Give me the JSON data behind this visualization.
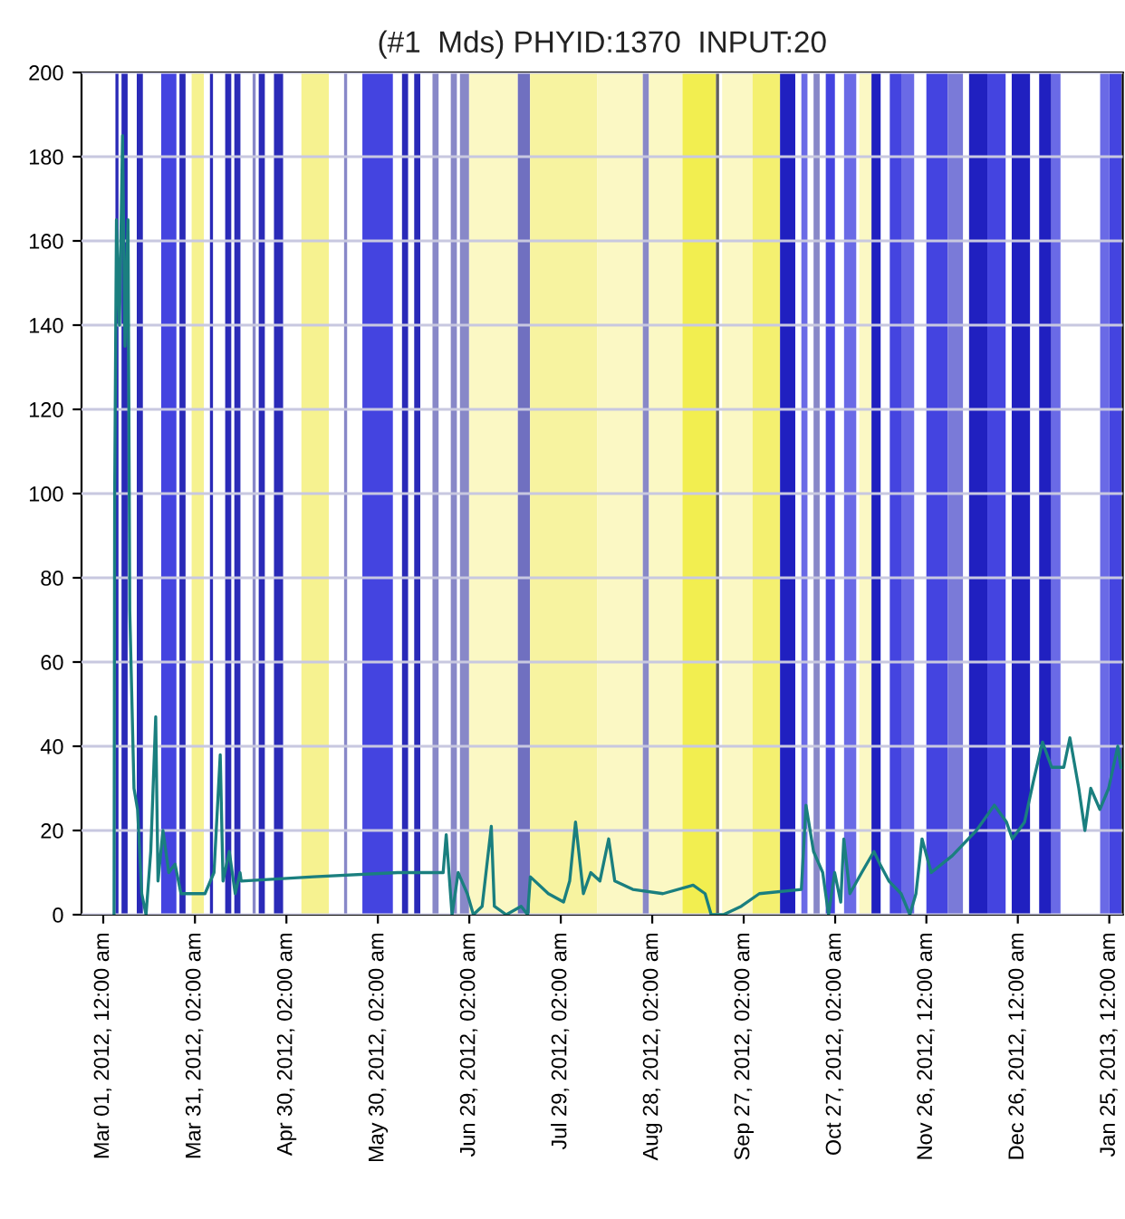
{
  "chart_data": {
    "type": "line",
    "title": "(#1  Mds) PHYID:1370  INPUT:20",
    "xlim": [
      "2012-02-22T21:00",
      "2013-01-29T10:00"
    ],
    "xticks": [
      {
        "value": "2012-03-01T00:00",
        "label": "Mar 01, 2012, 12:00 am"
      },
      {
        "value": "2012-03-31T02:00",
        "label": "Mar 31, 2012, 02:00 am"
      },
      {
        "value": "2012-04-30T02:00",
        "label": "Apr 30, 2012, 02:00 am"
      },
      {
        "value": "2012-05-30T02:00",
        "label": "May 30, 2012, 02:00 am"
      },
      {
        "value": "2012-06-29T02:00",
        "label": "Jun 29, 2012, 02:00 am"
      },
      {
        "value": "2012-07-29T02:00",
        "label": "Jul 29, 2012, 02:00 am"
      },
      {
        "value": "2012-08-28T02:00",
        "label": "Aug 28, 2012, 02:00 am"
      },
      {
        "value": "2012-09-27T02:00",
        "label": "Sep 27, 2012, 02:00 am"
      },
      {
        "value": "2012-10-27T02:00",
        "label": "Oct 27, 2012, 02:00 am"
      },
      {
        "value": "2012-11-26T00:00",
        "label": "Nov 26, 2012, 12:00 am"
      },
      {
        "value": "2012-12-26T00:00",
        "label": "Dec 26, 2012, 12:00 am"
      },
      {
        "value": "2013-01-25T00:00",
        "label": "Jan 25, 2013, 12:00 am"
      }
    ],
    "ylim": [
      0,
      200
    ],
    "yticks": [
      0,
      20,
      40,
      60,
      80,
      100,
      120,
      140,
      160,
      180,
      200
    ],
    "grid": "y",
    "marker": "none",
    "line_style": "solid",
    "bands": [
      {
        "axis": "x",
        "from": "2012-03-05",
        "to": "2012-03-06",
        "color": "#2a2ab8"
      },
      {
        "axis": "x",
        "from": "2012-03-07",
        "to": "2012-03-09",
        "color": "#2a2ab8"
      },
      {
        "axis": "x",
        "from": "2012-03-12",
        "to": "2012-03-14",
        "color": "#2a2ab8"
      },
      {
        "axis": "x",
        "from": "2012-03-20",
        "to": "2012-03-25",
        "color": "#4444e0"
      },
      {
        "axis": "x",
        "from": "2012-03-26",
        "to": "2012-03-28",
        "color": "#2a2ab8"
      },
      {
        "axis": "x",
        "from": "2012-03-30",
        "to": "2012-04-03",
        "color": "#f6f290"
      },
      {
        "axis": "x",
        "from": "2012-04-05",
        "to": "2012-04-06",
        "color": "#2a2ab8"
      },
      {
        "axis": "x",
        "from": "2012-04-10",
        "to": "2012-04-12",
        "color": "#2a2ab8"
      },
      {
        "axis": "x",
        "from": "2012-04-13",
        "to": "2012-04-15",
        "color": "#2a2ab8"
      },
      {
        "axis": "x",
        "from": "2012-04-19",
        "to": "2012-04-20",
        "color": "#8888c8"
      },
      {
        "axis": "x",
        "from": "2012-04-21",
        "to": "2012-04-23",
        "color": "#2a2ab8"
      },
      {
        "axis": "x",
        "from": "2012-04-26",
        "to": "2012-04-29",
        "color": "#2a2ab8"
      },
      {
        "axis": "x",
        "from": "2012-05-05",
        "to": "2012-05-14",
        "color": "#f6f290"
      },
      {
        "axis": "x",
        "from": "2012-05-19",
        "to": "2012-05-20",
        "color": "#8888c8"
      },
      {
        "axis": "x",
        "from": "2012-05-25",
        "to": "2012-06-04",
        "color": "#4444e0"
      },
      {
        "axis": "x",
        "from": "2012-06-07",
        "to": "2012-06-09",
        "color": "#2a2ab8"
      },
      {
        "axis": "x",
        "from": "2012-06-11",
        "to": "2012-06-13",
        "color": "#2a2ab8"
      },
      {
        "axis": "x",
        "from": "2012-06-17",
        "to": "2012-06-19",
        "color": "#8888c8"
      },
      {
        "axis": "x",
        "from": "2012-06-23",
        "to": "2012-06-25",
        "color": "#8888c8"
      },
      {
        "axis": "x",
        "from": "2012-06-26",
        "to": "2012-06-29",
        "color": "#8888c8"
      },
      {
        "axis": "x",
        "from": "2012-06-29",
        "to": "2012-07-15",
        "color": "#fbf8c4"
      },
      {
        "axis": "x",
        "from": "2012-07-15",
        "to": "2012-07-19",
        "color": "#7070c0"
      },
      {
        "axis": "x",
        "from": "2012-07-19",
        "to": "2012-08-10",
        "color": "#f7f3a0"
      },
      {
        "axis": "x",
        "from": "2012-08-10",
        "to": "2012-08-25",
        "color": "#fbf8c4"
      },
      {
        "axis": "x",
        "from": "2012-08-25",
        "to": "2012-08-27",
        "color": "#8888c8"
      },
      {
        "axis": "x",
        "from": "2012-08-27",
        "to": "2012-09-07",
        "color": "#fbf8c4"
      },
      {
        "axis": "x",
        "from": "2012-09-07",
        "to": "2012-09-18",
        "color": "#f2ee50"
      },
      {
        "axis": "x",
        "from": "2012-09-18",
        "to": "2012-09-19",
        "color": "#606060"
      },
      {
        "axis": "x",
        "from": "2012-09-20",
        "to": "2012-09-30",
        "color": "#fbf8c4"
      },
      {
        "axis": "x",
        "from": "2012-09-30",
        "to": "2012-10-09",
        "color": "#f4f070"
      },
      {
        "axis": "x",
        "from": "2012-10-09",
        "to": "2012-10-14",
        "color": "#2020c0"
      },
      {
        "axis": "x",
        "from": "2012-10-16",
        "to": "2012-10-18",
        "color": "#6a6ae6"
      },
      {
        "axis": "x",
        "from": "2012-10-20",
        "to": "2012-10-22",
        "color": "#8888c8"
      },
      {
        "axis": "x",
        "from": "2012-10-24",
        "to": "2012-10-27",
        "color": "#4444e0"
      },
      {
        "axis": "x",
        "from": "2012-10-30",
        "to": "2012-11-03",
        "color": "#6a6ae6"
      },
      {
        "axis": "x",
        "from": "2012-11-04",
        "to": "2012-11-08",
        "color": "#fbf8c4"
      },
      {
        "axis": "x",
        "from": "2012-11-08",
        "to": "2012-11-11",
        "color": "#2020c0"
      },
      {
        "axis": "x",
        "from": "2012-11-14",
        "to": "2012-11-18",
        "color": "#4444e0"
      },
      {
        "axis": "x",
        "from": "2012-11-18",
        "to": "2012-11-22",
        "color": "#6a6ae6"
      },
      {
        "axis": "x",
        "from": "2012-11-26",
        "to": "2012-12-03",
        "color": "#4444e0"
      },
      {
        "axis": "x",
        "from": "2012-12-03",
        "to": "2012-12-08",
        "color": "#7a7ad8"
      },
      {
        "axis": "x",
        "from": "2012-12-10",
        "to": "2012-12-16",
        "color": "#2020c0"
      },
      {
        "axis": "x",
        "from": "2012-12-16",
        "to": "2012-12-22",
        "color": "#4444e0"
      },
      {
        "axis": "x",
        "from": "2012-12-24",
        "to": "2012-12-30",
        "color": "#2020c0"
      },
      {
        "axis": "x",
        "from": "2013-01-02",
        "to": "2013-01-06",
        "color": "#2020c0"
      },
      {
        "axis": "x",
        "from": "2013-01-06",
        "to": "2013-01-09",
        "color": "#6a6ae6"
      },
      {
        "axis": "x",
        "from": "2013-01-22",
        "to": "2013-01-25",
        "color": "#6a6ae6"
      },
      {
        "axis": "x",
        "from": "2013-01-25",
        "to": "2013-01-29",
        "color": "#4444e0"
      }
    ],
    "series": [
      {
        "color": "#1a7f7f",
        "x": [
          "2012-03-04T13:00",
          "2012-03-04T18:00",
          "2012-03-05T08:00",
          "2012-03-06T08:00",
          "2012-03-07T08:00",
          "2012-03-08T03:00",
          "2012-03-09T03:00",
          "2012-03-09T17:00",
          "2012-03-11T02:00",
          "2012-03-12T06:00",
          "2012-03-13T15:00",
          "2012-03-15T01:00",
          "2012-03-16T14:00",
          "2012-03-18T05:00",
          "2012-03-18T23:00",
          "2012-03-20T14:00",
          "2012-03-22T12:00",
          "2012-03-24T13:00",
          "2012-03-26T12:00",
          "2012-03-30T11:00",
          "2012-04-03T09:00",
          "2012-04-06T08:00",
          "2012-04-08T09:00",
          "2012-04-09T07:00",
          "2012-04-11T08:00",
          "2012-04-13T07:00",
          "2012-04-14T21:00",
          "2012-04-15T06:00",
          "2012-05-08T23:00",
          "2012-06-05T14:00",
          "2012-06-20T12:00",
          "2012-06-21T12:00",
          "2012-06-23T10:00",
          "2012-06-25T10:00",
          "2012-06-28T10:00",
          "2012-06-30T10:00",
          "2012-07-03T07:00",
          "2012-07-06T07:00",
          "2012-07-07T07:00",
          "2012-07-11T05:00",
          "2012-07-16T02:00",
          "2012-07-18T05:00",
          "2012-07-19T02:00",
          "2012-07-25T00:00",
          "2012-07-30T00:00",
          "2012-08-01T00:00",
          "2012-08-02T22:00",
          "2012-08-05T12:00",
          "2012-08-07T22:00",
          "2012-08-10T22:00",
          "2012-08-13T19:00",
          "2012-08-15T19:00",
          "2012-08-21T17:00",
          "2012-08-31T14:00",
          "2012-09-10T12:00",
          "2012-09-14T10:00",
          "2012-09-16T10:00",
          "2012-09-20T10:00",
          "2012-09-26T07:00",
          "2012-10-02T05:00",
          "2012-10-16T00:00",
          "2012-10-17T12:00",
          "2012-10-20T00:00",
          "2012-10-23T00:00",
          "2012-10-24T22:00",
          "2012-10-26T22:00",
          "2012-10-28T22:00",
          "2012-10-29T22:00",
          "2012-10-31T22:00",
          "2012-11-04T19:00",
          "2012-11-08T19:00",
          "2012-11-10T19:00",
          "2012-11-13T17:00",
          "2012-11-17T17:00",
          "2012-11-20T14:00",
          "2012-11-22T14:00",
          "2012-11-24T14:00",
          "2012-11-27T14:00",
          "2012-12-04T12:00",
          "2012-12-12T10:00",
          "2012-12-18T07:00",
          "2012-12-22T07:00",
          "2012-12-24T05:00",
          "2012-12-28T05:00",
          "2012-12-31T05:00",
          "2013-01-03T02:00",
          "2013-01-06T02:00",
          "2013-01-10T02:00",
          "2013-01-12T02:00",
          "2013-01-15T00:00",
          "2013-01-17T00:00",
          "2013-01-18T22:00",
          "2013-01-21T22:00",
          "2013-01-24T19:00",
          "2013-01-27T19:00",
          "2013-01-28T19:00"
        ],
        "values": [
          0,
          100,
          165,
          140,
          185,
          135,
          165,
          72,
          30,
          25,
          5,
          0,
          15,
          47,
          8,
          20,
          10,
          12,
          5,
          5,
          5,
          10,
          38,
          8,
          15,
          5,
          10,
          8,
          9,
          10,
          10,
          19,
          0,
          10,
          5,
          0,
          2,
          21,
          2,
          0,
          2,
          0,
          9,
          5,
          3,
          8,
          22,
          5,
          10,
          8,
          18,
          8,
          6,
          5,
          7,
          5,
          0,
          0,
          2,
          5,
          6,
          26,
          15,
          10,
          0,
          10,
          3,
          18,
          5,
          10,
          15,
          12,
          8,
          5,
          0,
          5,
          18,
          10,
          14,
          20,
          26,
          22,
          18,
          22,
          32,
          41,
          35,
          35,
          42,
          30,
          20,
          30,
          25,
          30,
          40,
          35
        ]
      }
    ]
  }
}
